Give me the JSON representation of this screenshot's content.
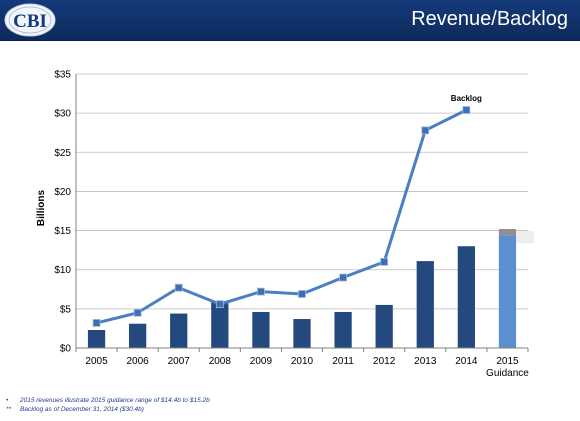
{
  "header": {
    "logo_text": "CBI",
    "title": "Revenue/Backlog"
  },
  "colors": {
    "header_bg": "#143a7a",
    "bar": "#24497e",
    "bar_guidance": "#5b8fd0",
    "bar_guidance_range": "#8f8f8f",
    "line": "#4b7fc2",
    "marker": "#3f6fb0"
  },
  "chart_data": {
    "type": "bar",
    "categories": [
      "2005",
      "2006",
      "2007",
      "2008",
      "2009",
      "2010",
      "2011",
      "2012",
      "2013",
      "2014",
      "2015"
    ],
    "category_sublabels": [
      "",
      "",
      "",
      "",
      "",
      "",
      "",
      "",
      "",
      "",
      "Guidance"
    ],
    "ylabel": "Billions",
    "ylim": [
      0,
      35
    ],
    "yticks": [
      0,
      5,
      10,
      15,
      20,
      25,
      30,
      35
    ],
    "ytick_labels": [
      "$0",
      "$5",
      "$10",
      "$15",
      "$20",
      "$25",
      "$30",
      "$35"
    ],
    "grid": true,
    "series": [
      {
        "type": "bar",
        "values": [
          2.3,
          3.1,
          4.4,
          5.9,
          4.6,
          3.7,
          4.6,
          5.5,
          11.1,
          13.0,
          14.4
        ],
        "guidance_range": [
          14.4,
          15.2
        ]
      },
      {
        "name": "Backlog",
        "type": "line",
        "values": [
          3.2,
          4.5,
          7.7,
          5.6,
          7.2,
          6.9,
          9.0,
          11.0,
          27.8,
          30.4,
          null
        ]
      }
    ],
    "annotations": [
      {
        "text": "Backlog",
        "category": "2014",
        "value": 30.4
      }
    ]
  },
  "footnotes": [
    {
      "mark": "•",
      "text": "2015 revenues illustrate 2015 guidance range of $14.4b to $15.2b"
    },
    {
      "mark": "**",
      "text": "Backlog as of  December 31, 2014 ($30.4b)"
    }
  ]
}
